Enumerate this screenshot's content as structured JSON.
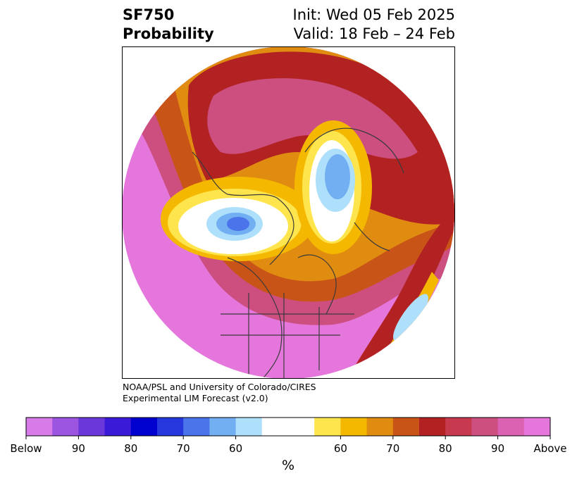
{
  "title": {
    "variable": "SF750",
    "subtitle": "Probability",
    "init": "Init: Wed 05 Feb 2025",
    "valid": "Valid: 18 Feb – 24 Feb"
  },
  "credit": {
    "line1": "NOAA/PSL and University of Colorado/CIRES",
    "line2": "Experimental LIM Forecast (v2.0)"
  },
  "colorbar": {
    "colors": [
      "#d67be8",
      "#9c55e0",
      "#6a37d9",
      "#3a1ad6",
      "#0000cf",
      "#2438de",
      "#4b74ea",
      "#72aef2",
      "#aee0fb",
      "#ffffff",
      "#ffffff",
      "#ffe54d",
      "#f5b800",
      "#e08c10",
      "#c95418",
      "#b22222",
      "#c6394f",
      "#cc4f80",
      "#db62b2",
      "#e476dc"
    ],
    "tick_labels": [
      "Below",
      "90",
      "80",
      "70",
      "60",
      "60",
      "70",
      "80",
      "90",
      "Above"
    ],
    "unit": "%"
  },
  "map_colors": {
    "above_high": "#e476dc",
    "above_mid": "#cc4f80",
    "above_low": "#b22222",
    "orange": "#c95418",
    "amber": "#e08c10",
    "gold": "#f5b800",
    "yellow": "#ffe54d",
    "neutral": "#ffffff",
    "light_blue": "#aee0fb",
    "blue": "#72aef2",
    "deep_blue": "#4b74ea"
  }
}
